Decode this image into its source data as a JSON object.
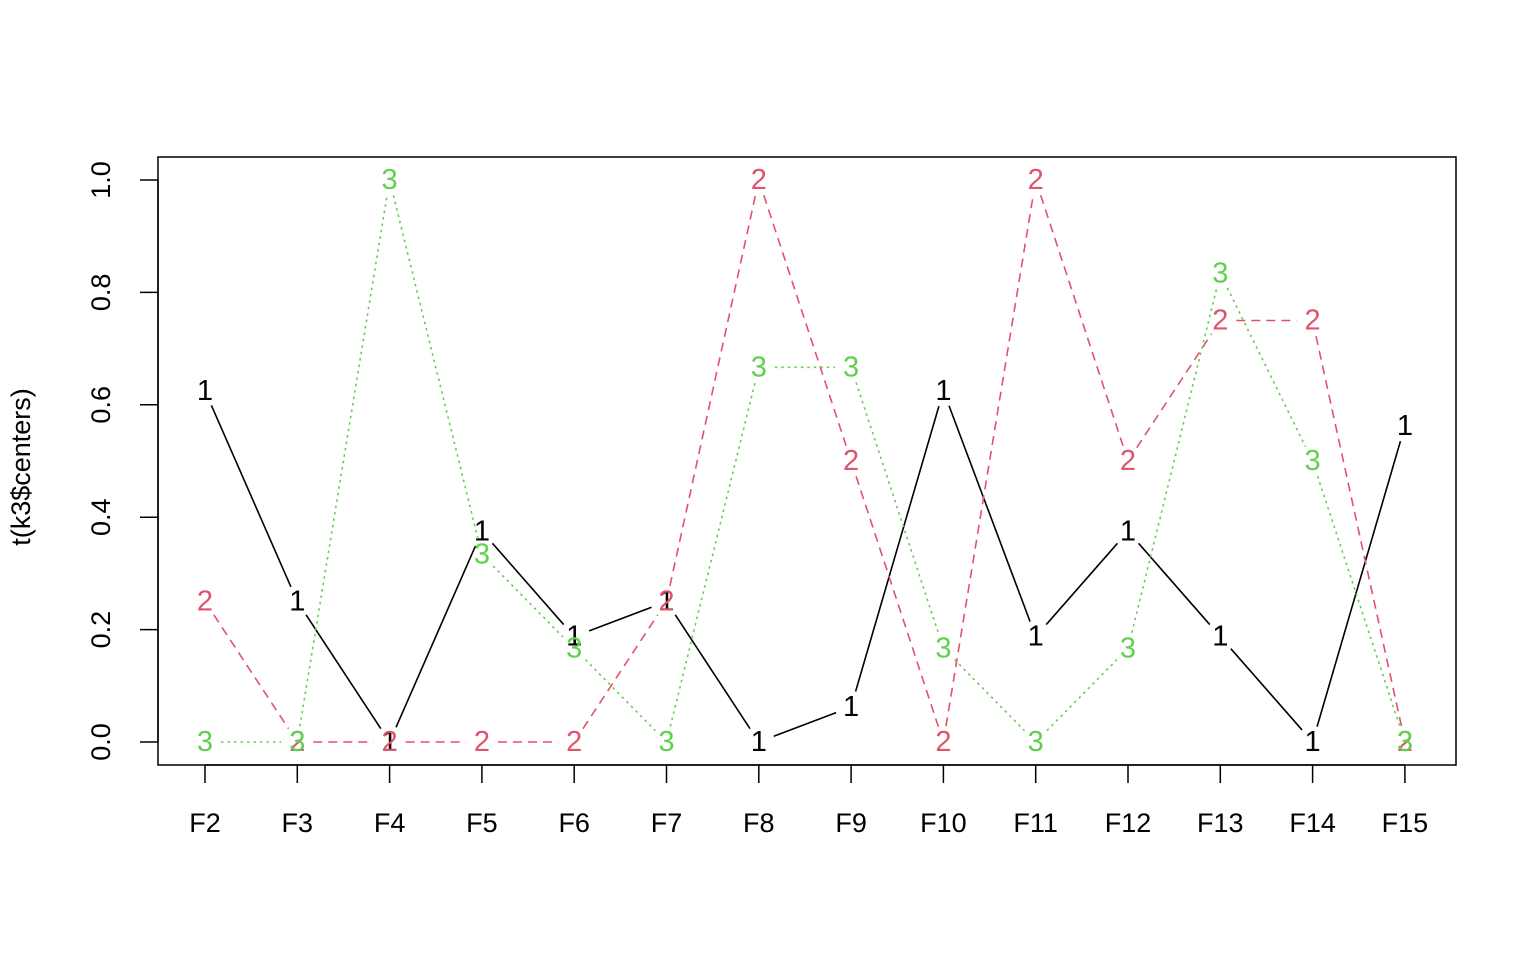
{
  "chart_data": {
    "type": "line",
    "title": "",
    "xlabel": "",
    "ylabel": "t(k3$centers)",
    "categories": [
      "F2",
      "F3",
      "F4",
      "F5",
      "F6",
      "F7",
      "F8",
      "F9",
      "F10",
      "F11",
      "F12",
      "F13",
      "F14",
      "F15"
    ],
    "yticks": [
      "0.0",
      "0.2",
      "0.4",
      "0.6",
      "0.8",
      "1.0"
    ],
    "ylim": [
      -0.04,
      1.04
    ],
    "grid": false,
    "legend": "none",
    "series": [
      {
        "symbol": "1",
        "color": "#000000",
        "line_style": "solid",
        "values": [
          0.625,
          0.25,
          0.0,
          0.375,
          0.1875,
          0.25,
          0.0,
          0.0625,
          0.625,
          0.1875,
          0.375,
          0.1875,
          0.0,
          0.5625
        ]
      },
      {
        "symbol": "2",
        "color": "#DF536B",
        "line_style": "dashed",
        "values": [
          0.25,
          0.0,
          0.0,
          0.0,
          0.0,
          0.25,
          1.0,
          0.5,
          0.0,
          1.0,
          0.5,
          0.75,
          0.75,
          0.0
        ]
      },
      {
        "symbol": "3",
        "color": "#61D04F",
        "line_style": "dotted",
        "values": [
          0.0,
          0.0,
          1.0,
          0.3333,
          0.1667,
          0.0,
          0.6667,
          0.6667,
          0.1667,
          0.0,
          0.1667,
          0.8333,
          0.5,
          0.0
        ]
      }
    ]
  }
}
